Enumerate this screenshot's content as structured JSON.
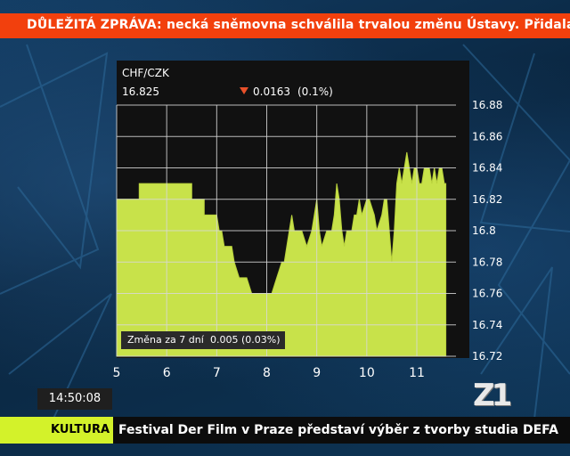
{
  "top_ticker": {
    "label": "DŮLEŽITÁ ZPRÁVA:",
    "text": "necká sněmovna schválila trvalou změnu Ústavy. Přidala do ní možnost s"
  },
  "quote": {
    "pair": "CHF/CZK",
    "price": "16.825",
    "change_abs": "0.0163",
    "change_pct": "(0.1%)"
  },
  "weekly_change": {
    "label": "Změna za 7 dní",
    "value": "0.005 (0.03%)"
  },
  "clock": "14:50:08",
  "logo": "Z1",
  "bottom_ticker": {
    "category": "KULTURA",
    "headline": "Festival Der Film v Praze představí výběr z tvorby studia DEFA"
  },
  "colors": {
    "top_ticker_bg": "#f2400d",
    "area_fill": "#c8e24a",
    "category_bg": "#d3f22a",
    "down_arrow": "#e8502a"
  },
  "chart_data": {
    "type": "area",
    "title": "CHF/CZK",
    "x_ticks": [
      "5",
      "6",
      "7",
      "8",
      "9",
      "10",
      "11"
    ],
    "y_ticks": [
      "16.88",
      "16.86",
      "16.84",
      "16.82",
      "16.8",
      "16.78",
      "16.76",
      "16.74",
      "16.72"
    ],
    "xlim": [
      5,
      11.65
    ],
    "ylim": [
      16.72,
      16.89
    ],
    "grid": true,
    "series": [
      {
        "x": [
          5,
          5.45,
          5.45,
          5.9,
          5.9,
          6.5,
          6.5,
          6.75,
          6.75,
          7.0,
          7.05,
          7.1,
          7.15,
          7.3,
          7.35,
          7.45,
          7.5,
          7.6,
          7.7,
          7.8,
          7.85,
          7.95,
          8.0,
          8.05,
          8.1,
          8.2,
          8.3,
          8.35,
          8.4,
          8.45,
          8.5,
          8.55,
          8.6,
          8.7,
          8.8,
          8.9,
          9.0,
          9.05,
          9.1,
          9.2,
          9.3,
          9.35,
          9.4,
          9.45,
          9.5,
          9.55,
          9.6,
          9.7,
          9.75,
          9.8,
          9.85,
          9.9,
          10.0,
          10.05,
          10.15,
          10.2,
          10.3,
          10.35,
          10.4,
          10.45,
          10.5,
          10.55,
          10.6,
          10.65,
          10.7,
          10.75,
          10.8,
          10.85,
          10.9,
          10.95,
          11.0,
          11.05,
          11.1,
          11.15,
          11.2,
          11.25,
          11.3,
          11.35,
          11.4,
          11.45,
          11.5,
          11.55,
          11.58
        ],
        "y": [
          16.82,
          16.82,
          16.83,
          16.83,
          16.83,
          16.83,
          16.82,
          16.82,
          16.81,
          16.81,
          16.8,
          16.8,
          16.79,
          16.79,
          16.78,
          16.77,
          16.77,
          16.77,
          16.76,
          16.76,
          16.76,
          16.76,
          16.76,
          16.76,
          16.76,
          16.77,
          16.78,
          16.78,
          16.79,
          16.8,
          16.81,
          16.8,
          16.8,
          16.8,
          16.79,
          16.8,
          16.82,
          16.8,
          16.79,
          16.8,
          16.8,
          16.81,
          16.83,
          16.82,
          16.8,
          16.79,
          16.8,
          16.8,
          16.81,
          16.81,
          16.82,
          16.81,
          16.82,
          16.82,
          16.81,
          16.8,
          16.81,
          16.82,
          16.82,
          16.8,
          16.78,
          16.8,
          16.83,
          16.84,
          16.83,
          16.84,
          16.85,
          16.84,
          16.83,
          16.84,
          16.84,
          16.83,
          16.83,
          16.84,
          16.84,
          16.84,
          16.83,
          16.84,
          16.83,
          16.84,
          16.84,
          16.83,
          16.83
        ]
      }
    ]
  }
}
